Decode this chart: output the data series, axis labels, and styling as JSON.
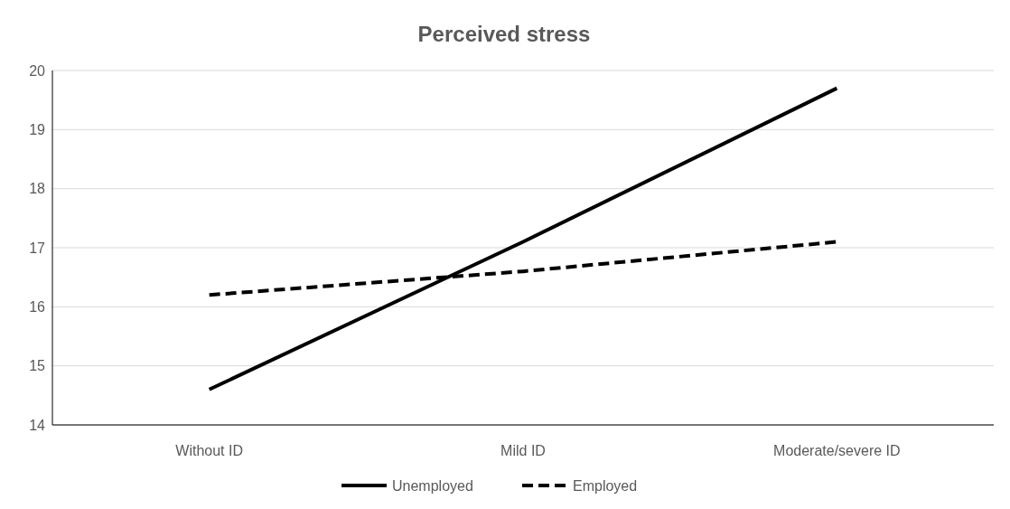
{
  "chart_data": {
    "type": "line",
    "title": "Perceived stress",
    "categories": [
      "Without ID",
      "Mild ID",
      "Moderate/severe ID"
    ],
    "series": [
      {
        "name": "Unemployed",
        "color": "#000000",
        "values": [
          14.6,
          17.1,
          19.7
        ],
        "line_style": "solid"
      },
      {
        "name": "Employed",
        "color": "#000000",
        "values": [
          16.2,
          16.6,
          17.1
        ],
        "line_style": "dashed"
      }
    ],
    "ylim": [
      14,
      20
    ],
    "yticks": [
      14,
      15,
      16,
      17,
      18,
      19,
      20
    ],
    "grid": "y",
    "legend": "bottom",
    "marker": "none"
  }
}
